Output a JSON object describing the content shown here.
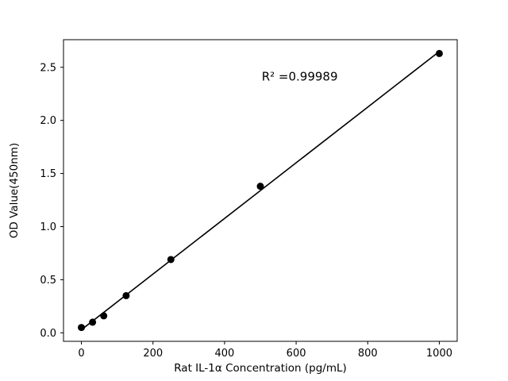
{
  "chart_data": {
    "type": "scatter",
    "title": "",
    "xlabel": "Rat IL-1α Concentration (pg/mL)",
    "ylabel": "OD Value(450nm)",
    "x": [
      0,
      31.25,
      62.5,
      125,
      250,
      500,
      1000
    ],
    "y": [
      0.05,
      0.1,
      0.16,
      0.35,
      0.69,
      1.38,
      2.63
    ],
    "xlim": [
      -50,
      1050
    ],
    "ylim": [
      -0.08,
      2.76
    ],
    "xticks": [
      0,
      200,
      400,
      600,
      800,
      1000
    ],
    "yticks": [
      0.0,
      0.5,
      1.0,
      1.5,
      2.0,
      2.5
    ],
    "annotation": "R² =0.99989",
    "annotation_pos": [
      0.6,
      0.135
    ],
    "fit_line": true,
    "marker_color": "#000000",
    "line_color": "#000000",
    "axis_color": "#000000",
    "grid": false,
    "legend": "none"
  }
}
